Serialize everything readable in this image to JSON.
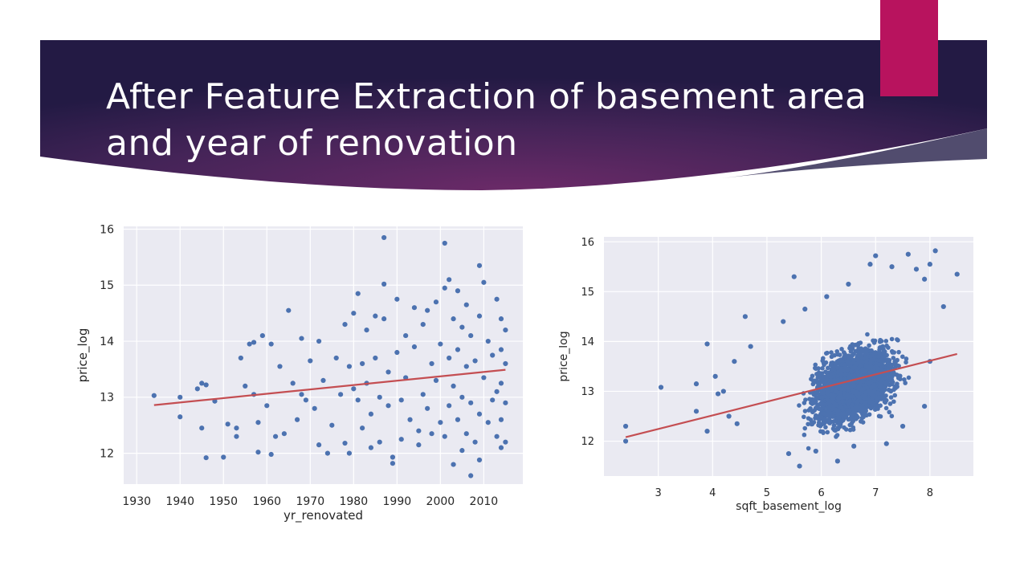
{
  "slide": {
    "title_lines": [
      "After Feature Extraction of basement area",
      "and year of renovation"
    ],
    "colors": {
      "banner_dark": "#231a44",
      "banner_mid": "#6b2a68",
      "accent": "#b8135e",
      "points": "#4c72b0",
      "fit_line": "#c44e52",
      "plot_bg": "#eaeaf2"
    }
  },
  "chart_data": [
    {
      "type": "scatter",
      "title": "",
      "xlabel": "yr_renovated",
      "ylabel": "price_log",
      "xlim": [
        1927,
        2019
      ],
      "ylim": [
        11.45,
        16.05
      ],
      "xticks": [
        1930,
        1940,
        1950,
        1960,
        1970,
        1980,
        1990,
        2000,
        2010
      ],
      "yticks": [
        12,
        13,
        14,
        15,
        16
      ],
      "grid": true,
      "regression": {
        "x": [
          1934,
          2015
        ],
        "y": [
          12.86,
          13.49
        ]
      },
      "series": [
        {
          "points": [
            [
              1934,
              13.03
            ],
            [
              1940,
              13.0
            ],
            [
              1940,
              12.65
            ],
            [
              1944,
              13.15
            ],
            [
              1945,
              13.25
            ],
            [
              1945,
              12.45
            ],
            [
              1946,
              13.22
            ],
            [
              1946,
              11.92
            ],
            [
              1948,
              12.93
            ],
            [
              1950,
              11.93
            ],
            [
              1951,
              12.52
            ],
            [
              1953,
              12.45
            ],
            [
              1953,
              12.3
            ],
            [
              1954,
              13.7
            ],
            [
              1955,
              13.2
            ],
            [
              1956,
              13.95
            ],
            [
              1957,
              13.98
            ],
            [
              1957,
              13.05
            ],
            [
              1958,
              12.02
            ],
            [
              1958,
              12.55
            ],
            [
              1959,
              14.1
            ],
            [
              1960,
              12.85
            ],
            [
              1961,
              13.95
            ],
            [
              1961,
              11.98
            ],
            [
              1962,
              12.3
            ],
            [
              1963,
              13.55
            ],
            [
              1964,
              12.35
            ],
            [
              1965,
              14.55
            ],
            [
              1966,
              13.25
            ],
            [
              1967,
              12.6
            ],
            [
              1968,
              14.05
            ],
            [
              1968,
              13.05
            ],
            [
              1969,
              12.95
            ],
            [
              1970,
              13.65
            ],
            [
              1971,
              12.8
            ],
            [
              1972,
              14.0
            ],
            [
              1972,
              12.15
            ],
            [
              1973,
              13.3
            ],
            [
              1974,
              12.0
            ],
            [
              1975,
              12.5
            ],
            [
              1976,
              13.7
            ],
            [
              1977,
              13.05
            ],
            [
              1978,
              14.3
            ],
            [
              1978,
              12.18
            ],
            [
              1979,
              13.55
            ],
            [
              1979,
              12.0
            ],
            [
              1980,
              14.5
            ],
            [
              1980,
              13.15
            ],
            [
              1981,
              14.85
            ],
            [
              1981,
              12.95
            ],
            [
              1982,
              13.6
            ],
            [
              1982,
              12.45
            ],
            [
              1983,
              14.2
            ],
            [
              1983,
              13.25
            ],
            [
              1984,
              12.7
            ],
            [
              1984,
              12.1
            ],
            [
              1985,
              14.45
            ],
            [
              1985,
              13.7
            ],
            [
              1986,
              13.0
            ],
            [
              1986,
              12.2
            ],
            [
              1987,
              15.85
            ],
            [
              1987,
              15.02
            ],
            [
              1987,
              14.4
            ],
            [
              1988,
              13.45
            ],
            [
              1988,
              12.85
            ],
            [
              1989,
              11.82
            ],
            [
              1989,
              11.93
            ],
            [
              1990,
              14.75
            ],
            [
              1990,
              13.8
            ],
            [
              1991,
              12.95
            ],
            [
              1991,
              12.25
            ],
            [
              1992,
              14.1
            ],
            [
              1992,
              13.35
            ],
            [
              1993,
              12.6
            ],
            [
              1994,
              14.6
            ],
            [
              1994,
              13.9
            ],
            [
              1995,
              12.4
            ],
            [
              1995,
              12.15
            ],
            [
              1996,
              14.3
            ],
            [
              1996,
              13.05
            ],
            [
              1997,
              14.55
            ],
            [
              1997,
              12.8
            ],
            [
              1998,
              13.6
            ],
            [
              1998,
              12.35
            ],
            [
              1999,
              14.7
            ],
            [
              1999,
              13.3
            ],
            [
              2000,
              12.55
            ],
            [
              2000,
              13.95
            ],
            [
              2001,
              15.75
            ],
            [
              2001,
              14.95
            ],
            [
              2001,
              12.3
            ],
            [
              2002,
              15.1
            ],
            [
              2002,
              13.7
            ],
            [
              2002,
              12.85
            ],
            [
              2003,
              14.4
            ],
            [
              2003,
              13.2
            ],
            [
              2003,
              11.8
            ],
            [
              2004,
              14.9
            ],
            [
              2004,
              13.85
            ],
            [
              2004,
              12.6
            ],
            [
              2005,
              14.25
            ],
            [
              2005,
              13.0
            ],
            [
              2005,
              12.05
            ],
            [
              2006,
              14.65
            ],
            [
              2006,
              13.55
            ],
            [
              2006,
              12.35
            ],
            [
              2007,
              14.1
            ],
            [
              2007,
              12.9
            ],
            [
              2007,
              11.6
            ],
            [
              2008,
              13.65
            ],
            [
              2008,
              12.2
            ],
            [
              2009,
              15.35
            ],
            [
              2009,
              14.45
            ],
            [
              2009,
              12.7
            ],
            [
              2009,
              11.88
            ],
            [
              2010,
              15.05
            ],
            [
              2010,
              13.35
            ],
            [
              2011,
              14.0
            ],
            [
              2011,
              12.55
            ],
            [
              2012,
              13.75
            ],
            [
              2012,
              12.95
            ],
            [
              2013,
              14.75
            ],
            [
              2013,
              13.1
            ],
            [
              2013,
              12.3
            ],
            [
              2014,
              14.4
            ],
            [
              2014,
              13.85
            ],
            [
              2014,
              13.25
            ],
            [
              2014,
              12.6
            ],
            [
              2014,
              12.1
            ],
            [
              2015,
              14.2
            ],
            [
              2015,
              13.6
            ],
            [
              2015,
              12.9
            ],
            [
              2015,
              12.2
            ]
          ]
        }
      ]
    },
    {
      "type": "scatter",
      "title": "",
      "xlabel": "sqft_basement_log",
      "ylabel": "price_log",
      "xlim": [
        2.0,
        8.8
      ],
      "ylim": [
        11.3,
        16.1
      ],
      "xticks": [
        3,
        4,
        5,
        6,
        7,
        8
      ],
      "yticks": [
        12,
        13,
        14,
        15,
        16
      ],
      "grid": true,
      "regression": {
        "x": [
          2.4,
          8.5
        ],
        "y": [
          12.08,
          13.75
        ]
      },
      "cloud": {
        "x_range": [
          4.6,
          7.9
        ],
        "y_range": [
          11.5,
          15.3
        ],
        "center": [
          6.6,
          13.1
        ]
      },
      "series": [
        {
          "points": [
            [
              2.4,
              12.3
            ],
            [
              2.4,
              12.0
            ],
            [
              3.05,
              13.08
            ],
            [
              3.7,
              13.15
            ],
            [
              3.7,
              12.6
            ],
            [
              3.9,
              13.95
            ],
            [
              3.9,
              12.2
            ],
            [
              4.05,
              13.3
            ],
            [
              4.1,
              12.95
            ],
            [
              4.2,
              13.0
            ],
            [
              4.3,
              12.5
            ],
            [
              4.4,
              13.6
            ],
            [
              4.45,
              12.35
            ],
            [
              4.6,
              14.5
            ],
            [
              4.7,
              13.9
            ],
            [
              5.3,
              14.4
            ],
            [
              5.5,
              15.3
            ],
            [
              5.7,
              14.65
            ],
            [
              6.1,
              14.9
            ],
            [
              6.5,
              15.15
            ],
            [
              6.9,
              15.55
            ],
            [
              7.0,
              15.72
            ],
            [
              7.3,
              15.5
            ],
            [
              7.6,
              15.75
            ],
            [
              7.75,
              15.45
            ],
            [
              7.9,
              15.25
            ],
            [
              8.0,
              15.55
            ],
            [
              8.1,
              15.82
            ],
            [
              8.25,
              14.7
            ],
            [
              8.5,
              15.35
            ],
            [
              5.4,
              11.75
            ],
            [
              5.6,
              11.5
            ],
            [
              5.9,
              11.8
            ],
            [
              6.3,
              11.6
            ],
            [
              6.6,
              11.9
            ],
            [
              7.2,
              11.95
            ],
            [
              7.5,
              12.3
            ],
            [
              7.9,
              12.7
            ],
            [
              8.0,
              13.6
            ]
          ]
        }
      ]
    }
  ]
}
